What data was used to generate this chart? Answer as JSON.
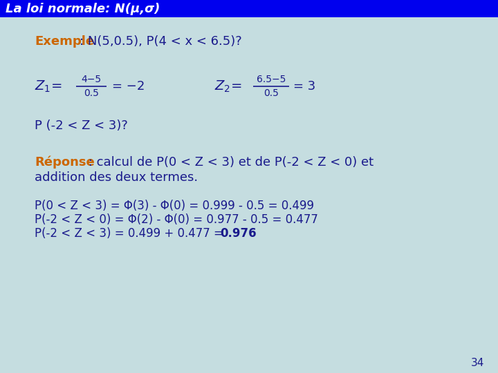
{
  "title": "La loi normale: N(μ,σ)",
  "title_bg_color": "#0000EE",
  "title_text_color": "#FFFFFF",
  "bg_color": "#C5DDE0",
  "slide_number": "34",
  "exemple_label": "Exemple",
  "exemple_colon": ": N(5,0.5), P(4 < x < 6.5)?",
  "formula_z1_top": "4−5",
  "formula_z1_bot": "0.5",
  "formula_z1_result": "= −2",
  "formula_z2_top": "6.5−5",
  "formula_z2_bot": "0.5",
  "formula_z2_result": "= 3",
  "p_question": "P (-2 < Z < 3)?",
  "reponse_label": "Réponse",
  "reponse_line1": " : calcul de P(0 < Z < 3) et de P(-2 < Z < 0) et",
  "reponse_line2": "addition des deux termes.",
  "calc_line1": "P(0 < Z < 3) = Φ(3) - Φ(0) = 0.999 - 0.5 = 0.499",
  "calc_line2": "P(-2 < Z < 0) = Φ(2) - Φ(0) = 0.977 - 0.5 = 0.477",
  "calc_line3_normal": "P(-2 < Z < 3) = 0.499 + 0.477 = ",
  "calc_line3_bold": "0.976",
  "dark_blue": "#1A1A8C",
  "orange_color": "#CC6600",
  "font_size_main": 13,
  "font_size_formula": 12,
  "font_size_calc": 12
}
